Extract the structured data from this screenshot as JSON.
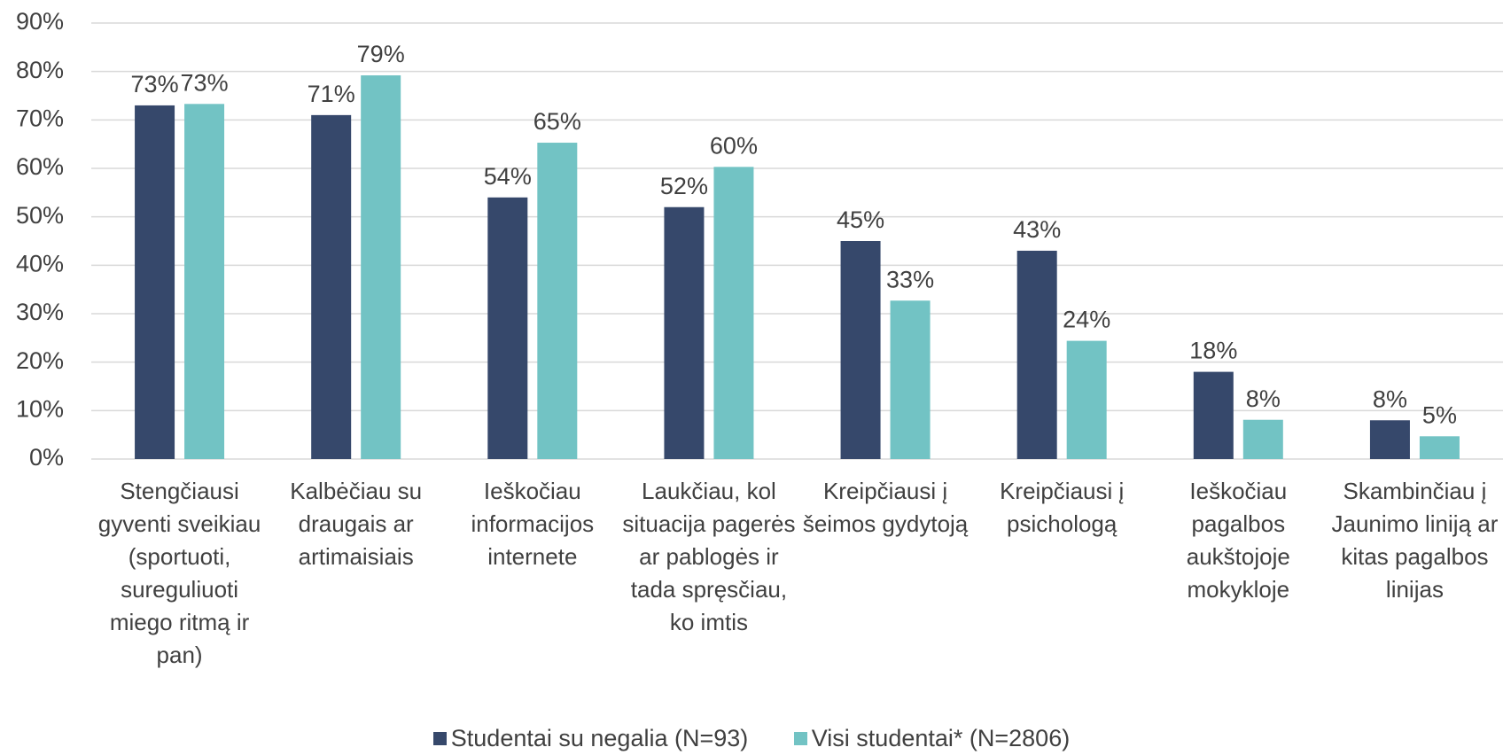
{
  "chart_data": {
    "type": "bar",
    "categories": [
      "Stengčiausi gyventi sveikiau (sportuoti, sureguliuoti miego ritmą ir pan)",
      "Kalbėčiau su draugais ar artimaisiais",
      "Ieškočiau informacijos internete",
      "Laukčiau, kol situacija pagerės ar pablogės ir tada spręsčiau, ko imtis",
      "Kreipčiausi į šeimos gydytoją",
      "Kreipčiausi į psichologą",
      "Ieškočiau pagalbos aukštojoje mokykloje",
      "Skambinčiau į Jaunimo liniją ar kitas pagalbos linijas"
    ],
    "series": [
      {
        "name": "Studentai su negalia (N=93)",
        "color": "#36486b",
        "values": [
          73,
          71,
          54,
          52,
          45,
          43,
          18,
          8
        ],
        "value_labels": [
          "73%",
          "71%",
          "54%",
          "52%",
          "45%",
          "43%",
          "18%",
          "8%"
        ]
      },
      {
        "name": "Visi studentai* (N=2806)",
        "color": "#72c3c4",
        "values": [
          73.3,
          79.2,
          65.3,
          60.3,
          32.7,
          24.4,
          8.1,
          4.7
        ],
        "value_labels": [
          "73%",
          "79%",
          "65%",
          "60%",
          "33%",
          "24%",
          "8%",
          "5%"
        ]
      }
    ],
    "ylim": [
      0,
      90
    ],
    "yticks": [
      {
        "value": 0,
        "label": "0%"
      },
      {
        "value": 10,
        "label": "10%"
      },
      {
        "value": 20,
        "label": "20%"
      },
      {
        "value": 30,
        "label": "30%"
      },
      {
        "value": 40,
        "label": "40%"
      },
      {
        "value": 50,
        "label": "50%"
      },
      {
        "value": 60,
        "label": "60%"
      },
      {
        "value": 70,
        "label": "70%"
      },
      {
        "value": 80,
        "label": "80%"
      },
      {
        "value": 90,
        "label": "90%"
      }
    ],
    "grid": true,
    "legend": "bottom"
  }
}
